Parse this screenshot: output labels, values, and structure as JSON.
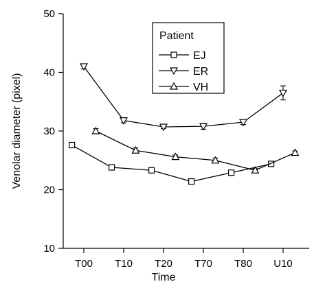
{
  "chart_data": {
    "type": "line",
    "xlabel": "Time",
    "ylabel": "Venolar diameter (pixel)",
    "categories": [
      "T00",
      "T10",
      "T20",
      "T70",
      "T80",
      "U10"
    ],
    "ylim": [
      10,
      50
    ],
    "yticks": [
      10,
      20,
      30,
      40,
      50
    ],
    "grid": false,
    "legend": {
      "title": "Patient",
      "position": "top-center"
    },
    "series": [
      {
        "name": "EJ",
        "marker": "square",
        "x": [
          -0.3,
          0.7,
          1.7,
          2.7,
          3.7,
          4.7
        ],
        "values": [
          27.6,
          23.8,
          23.3,
          21.4,
          22.9,
          24.4
        ],
        "errors": [
          0.4,
          0.4,
          0.3,
          0.3,
          0.3,
          0.3
        ]
      },
      {
        "name": "ER",
        "marker": "triangle-down",
        "x": [
          0.0,
          1.0,
          2.0,
          3.0,
          4.0,
          5.0
        ],
        "values": [
          41.0,
          31.8,
          30.7,
          30.8,
          31.5,
          36.5
        ],
        "errors": [
          0.4,
          0.4,
          0.3,
          0.5,
          0.4,
          1.2
        ]
      },
      {
        "name": "VH",
        "marker": "triangle-up",
        "x": [
          0.3,
          1.3,
          2.3,
          3.3,
          4.3,
          5.3
        ],
        "values": [
          30.0,
          26.7,
          25.6,
          25.0,
          23.3,
          26.3
        ],
        "errors": [
          0.4,
          0.4,
          0.3,
          0.4,
          0.3,
          0.3
        ]
      }
    ]
  }
}
